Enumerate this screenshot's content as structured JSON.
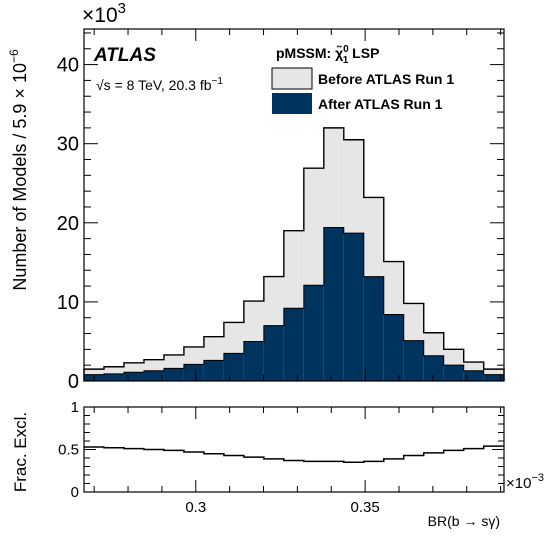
{
  "figure": {
    "experiment": "ATLAS",
    "energy_prefix": "√s",
    "energy_text": " = 8 TeV, 20.3 fb",
    "lumi_exponent": "−1"
  },
  "colors": {
    "before": "#e6e6e6",
    "after": "#00335e",
    "line": "#000000"
  },
  "chart_data": [
    {
      "type": "bar",
      "panel": "main",
      "ylabel": "Number of Models / 5.9 × 10",
      "ylabel_exponent": "−6",
      "y_multiplier": "×10",
      "y_multiplier_exponent": "3",
      "xlim": [
        0.267,
        0.391
      ],
      "ylim": [
        0,
        44.5
      ],
      "yticks": [
        0,
        10,
        20,
        30,
        40
      ],
      "ytick_labels": [
        "0",
        "10",
        "20",
        "30",
        "40"
      ],
      "bin_width": 0.0059,
      "bin_edges": [
        0.267,
        0.2729,
        0.2788,
        0.2847,
        0.2906,
        0.2965,
        0.3024,
        0.3083,
        0.3142,
        0.3201,
        0.326,
        0.3319,
        0.3378,
        0.3437,
        0.3496,
        0.3555,
        0.3614,
        0.3673,
        0.3732,
        0.3791,
        0.385,
        0.391
      ],
      "legend_title": "pMSSM: ",
      "legend_title_symbol": "χ̃",
      "legend_title_sup": "0",
      "legend_title_sub": "1",
      "legend_title_suffix": " LSP",
      "legend_position": "top-right",
      "series": [
        {
          "name": "Before ATLAS Run 1",
          "values": [
            1.5,
            1.8,
            2.3,
            2.7,
            3.3,
            4.3,
            5.6,
            7.4,
            10.1,
            13.2,
            19.0,
            26.9,
            32.0,
            30.5,
            23.2,
            15.1,
            9.8,
            6.1,
            4.0,
            2.4,
            1.5
          ]
        },
        {
          "name": "After ATLAS Run 1",
          "values": [
            0.8,
            0.9,
            1.1,
            1.3,
            1.6,
            2.1,
            2.6,
            3.5,
            5.0,
            7.0,
            9.2,
            12.1,
            19.4,
            18.7,
            13.2,
            8.4,
            5.1,
            3.2,
            2.0,
            1.3,
            0.8
          ]
        }
      ]
    },
    {
      "type": "line",
      "panel": "ratio",
      "ylabel": "Frac. Excl.",
      "xlabel_text": "BR(b → sγ)",
      "x_multiplier": "×10",
      "x_multiplier_exponent": "−3",
      "xlim": [
        0.267,
        0.391
      ],
      "ylim": [
        0,
        1
      ],
      "yticks": [
        0,
        0.5,
        1
      ],
      "ytick_labels": [
        "0",
        "0.5",
        "1"
      ],
      "xticks": [
        0.3,
        0.35
      ],
      "xtick_labels": [
        "0.3",
        "0.35"
      ],
      "values": [
        0.53,
        0.52,
        0.51,
        0.5,
        0.49,
        0.47,
        0.45,
        0.43,
        0.41,
        0.39,
        0.37,
        0.36,
        0.36,
        0.35,
        0.36,
        0.39,
        0.43,
        0.46,
        0.49,
        0.51,
        0.54
      ]
    }
  ]
}
